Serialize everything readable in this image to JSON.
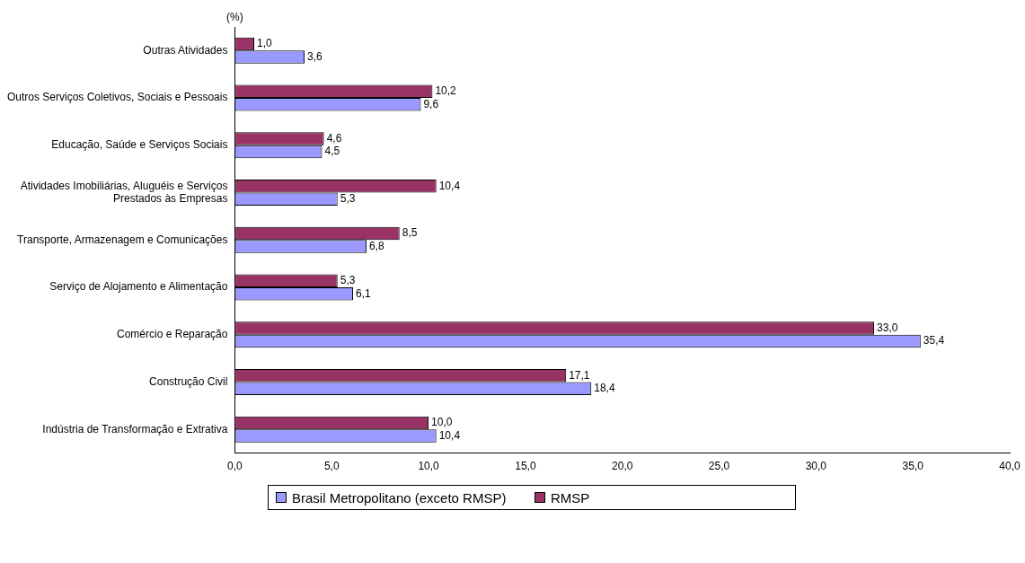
{
  "chart_data": {
    "type": "bar",
    "orientation": "horizontal",
    "ylabel": "(%)",
    "categories": [
      "Outras Atividades",
      "Outros Serviços Coletivos, Sociais e Pessoais",
      "Educação, Saúde e Serviços Sociais",
      "Atividades Imobiliárias, Aluguéis e Serviços Prestados às Empresas",
      "Transporte, Armazenagem e Comunicações",
      "Serviço de Alojamento e Alimentação",
      "Comércio e Reparação",
      "Construção Civil",
      "Indústria de Transformação e Extrativa"
    ],
    "series": [
      {
        "name": "Brasil Metropolitano (exceto RMSP)",
        "color": "#9999ff",
        "values": [
          3.6,
          9.6,
          4.5,
          5.3,
          6.8,
          6.1,
          35.4,
          18.4,
          10.4
        ],
        "value_labels": [
          "3,6",
          "9,6",
          "4,5",
          "5,3",
          "6,8",
          "6,1",
          "35,4",
          "18,4",
          "10,4"
        ]
      },
      {
        "name": "RMSP",
        "color": "#993366",
        "values": [
          1.0,
          10.2,
          4.6,
          10.4,
          8.5,
          5.3,
          33.0,
          17.1,
          10.0
        ],
        "value_labels": [
          "1,0",
          "10,2",
          "4,6",
          "10,4",
          "8,5",
          "5,3",
          "33,0",
          "17,1",
          "10,0"
        ]
      }
    ],
    "xlim": [
      0,
      40
    ],
    "xticks": [
      {
        "value": 0,
        "label": "0,0"
      },
      {
        "value": 5,
        "label": "5,0"
      },
      {
        "value": 10,
        "label": "10,0"
      },
      {
        "value": 15,
        "label": "15,0"
      },
      {
        "value": 20,
        "label": "20,0"
      },
      {
        "value": 25,
        "label": "25,0"
      },
      {
        "value": 30,
        "label": "30,0"
      },
      {
        "value": 35,
        "label": "35,0"
      },
      {
        "value": 40,
        "label": "40,0"
      }
    ],
    "grid": false,
    "legend": "bottom"
  }
}
